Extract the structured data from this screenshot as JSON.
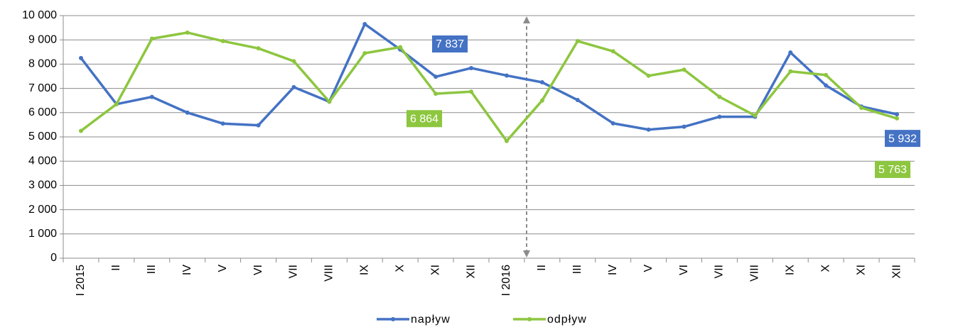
{
  "chart_data": {
    "type": "line",
    "categories": [
      "I 2015",
      "II",
      "III",
      "IV",
      "V",
      "VI",
      "VII",
      "VIII",
      "IX",
      "X",
      "XI",
      "XII",
      "I 2016",
      "II",
      "III",
      "IV",
      "V",
      "VI",
      "VII",
      "VIII",
      "IX",
      "X",
      "XI",
      "XII"
    ],
    "series": [
      {
        "name": "napływ",
        "color": "#4472c4",
        "values": [
          8250,
          6350,
          6650,
          6000,
          5550,
          5480,
          7050,
          6450,
          9650,
          8600,
          7480,
          7837,
          7530,
          7250,
          6520,
          5560,
          5300,
          5420,
          5830,
          5830,
          8480,
          7120,
          6250,
          5932
        ],
        "value_labels": [
          null,
          null,
          null,
          null,
          null,
          null,
          null,
          null,
          null,
          null,
          null,
          "7 837",
          null,
          null,
          null,
          null,
          null,
          null,
          null,
          null,
          null,
          null,
          null,
          "5 932"
        ]
      },
      {
        "name": "odpływ",
        "color": "#8dc63f",
        "values": [
          5250,
          6350,
          9050,
          9300,
          8950,
          8650,
          8120,
          6450,
          8450,
          8700,
          6780,
          6864,
          4830,
          6500,
          8950,
          8530,
          7520,
          7770,
          6650,
          5880,
          7700,
          7550,
          6200,
          5763
        ],
        "value_labels": [
          null,
          null,
          null,
          null,
          null,
          null,
          null,
          null,
          null,
          null,
          null,
          "6 864",
          null,
          null,
          null,
          null,
          null,
          null,
          null,
          null,
          null,
          null,
          null,
          "5 763"
        ]
      }
    ],
    "ylim": [
      0,
      10000
    ],
    "yticks": [
      0,
      {
        "value": 1000,
        "label": "1 000"
      },
      {
        "value": 2000,
        "label": "2 000"
      },
      {
        "value": 3000,
        "label": "3 000"
      },
      {
        "value": 4000,
        "label": "4 000"
      },
      {
        "value": 5000,
        "label": "5 000"
      },
      {
        "value": 6000,
        "label": "6 000"
      },
      {
        "value": 7000,
        "label": "7 000"
      },
      {
        "value": 8000,
        "label": "8 000"
      },
      {
        "value": 9000,
        "label": "9 000"
      },
      {
        "value": 10000,
        "label": "10 000"
      }
    ],
    "grid": true,
    "legend": "bottom"
  }
}
